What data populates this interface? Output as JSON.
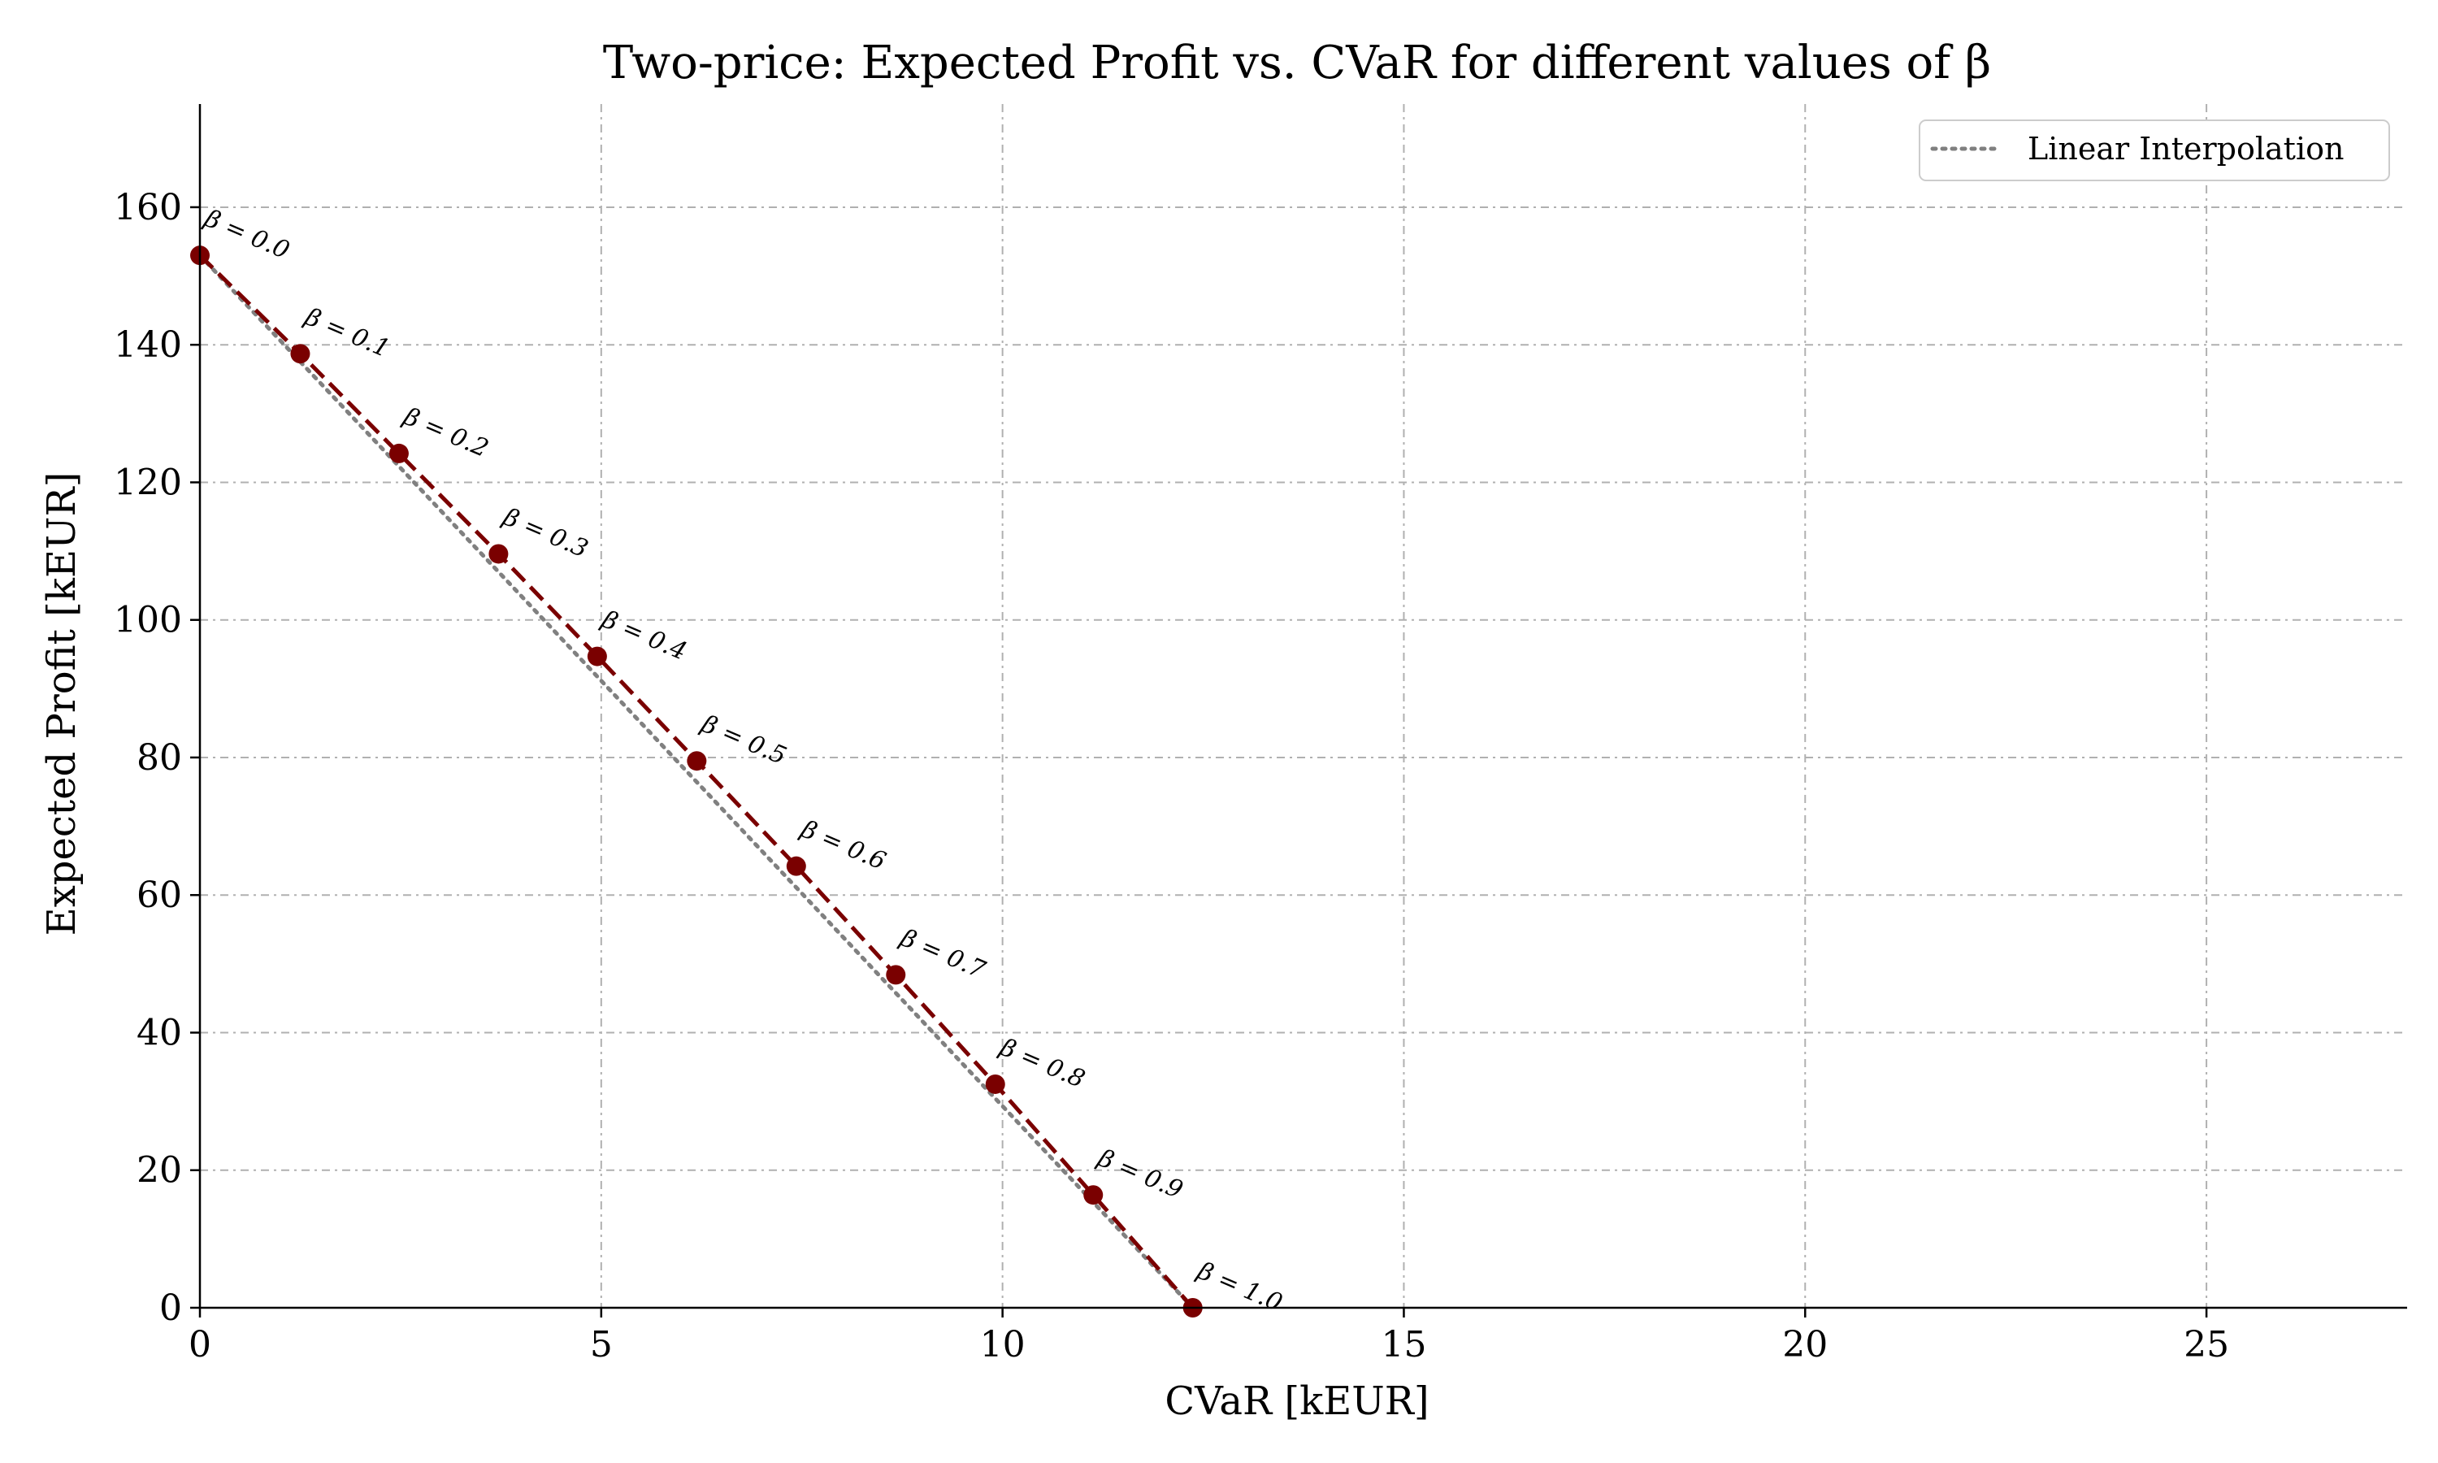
{
  "chart_data": {
    "type": "line",
    "title": "Two-price: Expected Profit vs. CVaR for different values of β",
    "xlabel": "CVaR [kEUR]",
    "ylabel": "Expected Profit [kEUR]",
    "xlim": [
      0,
      27.5
    ],
    "ylim": [
      0,
      175
    ],
    "xticks": [
      0,
      5,
      10,
      15,
      20,
      25
    ],
    "yticks": [
      0,
      20,
      40,
      60,
      80,
      100,
      120,
      140,
      160
    ],
    "grid": true,
    "legend_position": "top-right",
    "series": [
      {
        "kind": "markers-dashed",
        "color": "#7a0000",
        "points": [
          {
            "beta": "β = 0.0",
            "x": 0.0,
            "y": 153.0
          },
          {
            "beta": "β = 0.1",
            "x": 1.25,
            "y": 138.7
          },
          {
            "beta": "β = 0.2",
            "x": 2.48,
            "y": 124.2
          },
          {
            "beta": "β = 0.3",
            "x": 3.72,
            "y": 109.6
          },
          {
            "beta": "β = 0.4",
            "x": 4.95,
            "y": 94.7
          },
          {
            "beta": "β = 0.5",
            "x": 6.19,
            "y": 79.5
          },
          {
            "beta": "β = 0.6",
            "x": 7.43,
            "y": 64.2
          },
          {
            "beta": "β = 0.7",
            "x": 8.67,
            "y": 48.4
          },
          {
            "beta": "β = 0.8",
            "x": 9.91,
            "y": 32.5
          },
          {
            "beta": "β = 0.9",
            "x": 11.13,
            "y": 16.4
          },
          {
            "beta": "β = 1.0",
            "x": 12.37,
            "y": 0.0
          }
        ]
      },
      {
        "name": "Linear Interpolation",
        "kind": "dotted",
        "color": "#808080",
        "points": [
          {
            "x": 0.0,
            "y": 153.0
          },
          {
            "x": 12.37,
            "y": 0.0
          }
        ]
      }
    ]
  }
}
